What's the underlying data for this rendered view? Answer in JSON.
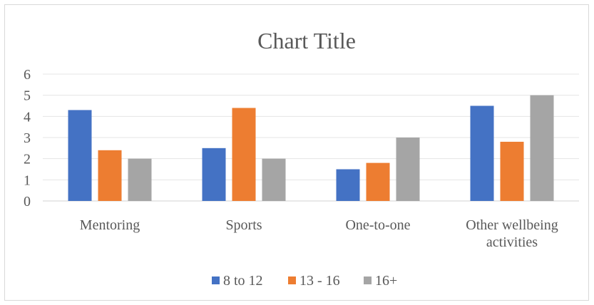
{
  "chart_data": {
    "type": "bar",
    "title": "Chart Title",
    "categories": [
      "Mentoring",
      "Sports",
      "One-to-one",
      "Other wellbeing activities"
    ],
    "series": [
      {
        "name": "8 to 12",
        "color": "#4472c4",
        "values": [
          4.3,
          2.5,
          1.5,
          4.5
        ]
      },
      {
        "name": "13 - 16",
        "color": "#ed7d31",
        "values": [
          2.4,
          4.4,
          1.8,
          2.8
        ]
      },
      {
        "name": "16+",
        "color": "#a5a5a5",
        "values": [
          2.0,
          2.0,
          3.0,
          5.0
        ]
      }
    ],
    "ylim": [
      0,
      6
    ],
    "yticks": [
      0,
      1,
      2,
      3,
      4,
      5,
      6
    ],
    "grid": true,
    "legend": "bottom"
  }
}
